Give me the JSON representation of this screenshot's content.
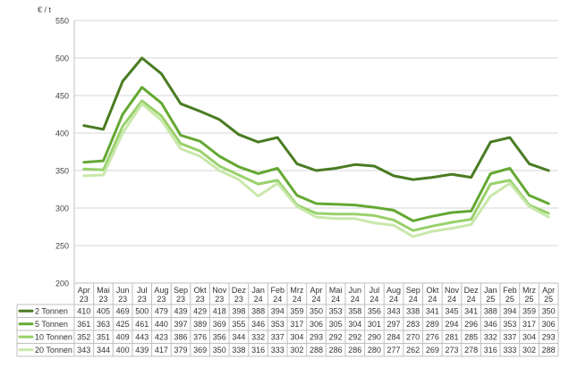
{
  "chart_data": {
    "type": "line",
    "ylabel": "€ / t",
    "ylim": [
      200,
      550
    ],
    "yticks": [
      200,
      250,
      300,
      350,
      400,
      450,
      500,
      550
    ],
    "grid": true,
    "legend_placement": "left of data table",
    "categories": [
      [
        "Apr",
        "23"
      ],
      [
        "Mai",
        "23"
      ],
      [
        "Jun",
        "23"
      ],
      [
        "Jul",
        "23"
      ],
      [
        "Aug",
        "23"
      ],
      [
        "Sep",
        "23"
      ],
      [
        "Okt",
        "23"
      ],
      [
        "Nov",
        "23"
      ],
      [
        "Dez",
        "23"
      ],
      [
        "Jan",
        "24"
      ],
      [
        "Feb",
        "24"
      ],
      [
        "Mrz",
        "24"
      ],
      [
        "Apr",
        "24"
      ],
      [
        "Mai",
        "24"
      ],
      [
        "Jun",
        "24"
      ],
      [
        "Jul",
        "24"
      ],
      [
        "Aug",
        "24"
      ],
      [
        "Sep",
        "24"
      ],
      [
        "Okt",
        "24"
      ],
      [
        "Nov",
        "24"
      ],
      [
        "Dez",
        "24"
      ],
      [
        "Jan",
        "25"
      ],
      [
        "Feb",
        "25"
      ],
      [
        "Mrz",
        "25"
      ],
      [
        "Apr",
        "25"
      ]
    ],
    "series": [
      {
        "name": "2 Tonnen",
        "color": "#4a7c23",
        "values": [
          410,
          405,
          469,
          500,
          479,
          439,
          429,
          418,
          398,
          388,
          394,
          359,
          350,
          353,
          358,
          356,
          343,
          338,
          341,
          345,
          341,
          388,
          394,
          359,
          350
        ]
      },
      {
        "name": "5 Tonnen",
        "color": "#64a832",
        "values": [
          361,
          363,
          425,
          461,
          440,
          397,
          389,
          369,
          355,
          346,
          353,
          317,
          306,
          305,
          304,
          301,
          297,
          283,
          289,
          294,
          296,
          346,
          353,
          317,
          306
        ]
      },
      {
        "name": "10 Tonnen",
        "color": "#9ad16b",
        "values": [
          352,
          351,
          409,
          443,
          423,
          386,
          376,
          356,
          344,
          332,
          337,
          304,
          293,
          292,
          292,
          290,
          284,
          270,
          276,
          281,
          285,
          332,
          337,
          304,
          293
        ]
      },
      {
        "name": "20 Tonnen",
        "color": "#c9e8ab",
        "values": [
          343,
          344,
          400,
          439,
          417,
          379,
          369,
          350,
          338,
          316,
          333,
          302,
          288,
          286,
          286,
          280,
          277,
          262,
          269,
          273,
          278,
          316,
          333,
          302,
          288
        ]
      }
    ]
  }
}
